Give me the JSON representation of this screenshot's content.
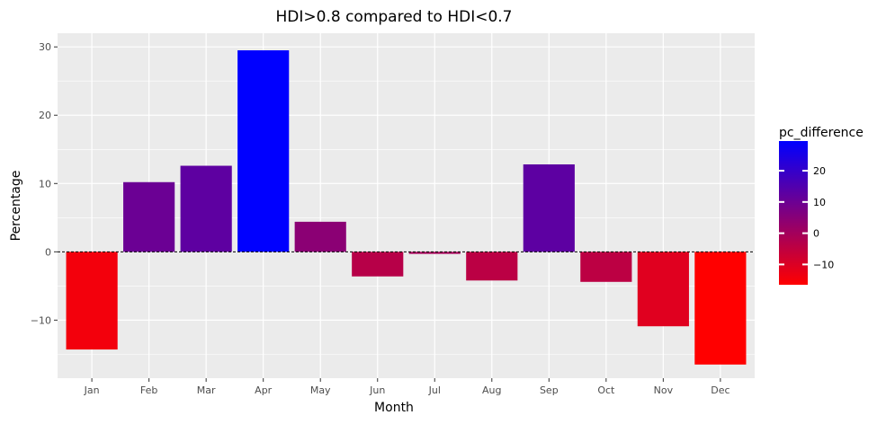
{
  "chart_data": {
    "type": "bar",
    "title": "HDI>0.8 compared to HDI<0.7",
    "xlabel": "Month",
    "ylabel": "Percentage",
    "categories": [
      "Jan",
      "Feb",
      "Mar",
      "Apr",
      "May",
      "Jun",
      "Jul",
      "Aug",
      "Sep",
      "Oct",
      "Nov",
      "Dec"
    ],
    "values": [
      -14.3,
      10.2,
      12.6,
      29.5,
      4.4,
      -3.6,
      -0.3,
      -4.2,
      12.8,
      -4.4,
      -10.9,
      -16.5
    ],
    "ylim": [
      -18.5,
      32
    ],
    "yticks": [
      -10,
      0,
      10,
      20,
      30
    ],
    "ytick_labels": [
      "−10",
      "0",
      "10",
      "20",
      "30"
    ],
    "grid": true,
    "reference_line": 0,
    "legend": {
      "title": "pc_difference",
      "placement": "right",
      "ticks": [
        -10,
        0,
        10,
        20
      ],
      "tick_labels": [
        "−10",
        "0",
        "10",
        "20"
      ],
      "range": [
        -16.5,
        29.5
      ]
    },
    "colors": {
      "low": "#ff0000",
      "high": "#0000ff",
      "panel_bg": "#ebebeb",
      "grid": "#ffffff"
    }
  }
}
